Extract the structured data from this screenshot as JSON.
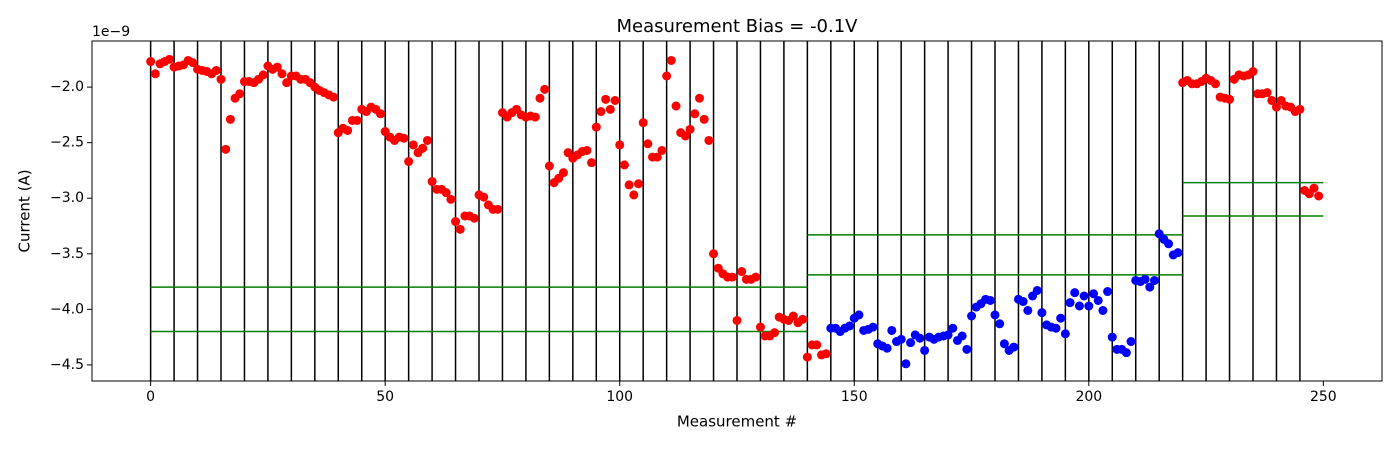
{
  "chart_data": {
    "type": "scatter",
    "title": "Measurement Bias = -0.1V",
    "x_label": "Measurement #",
    "y_label": "Current (A)",
    "y_offset_text": "1e−9",
    "xlim": [
      -12.5,
      262.5
    ],
    "ylim": [
      -4.645,
      -1.585
    ],
    "xticks": [
      0,
      50,
      100,
      150,
      200,
      250
    ],
    "yticks": [
      {
        "value": -2.0,
        "label": "−2.0"
      },
      {
        "value": -2.5,
        "label": "−2.5"
      },
      {
        "value": -3.0,
        "label": "−3.0"
      },
      {
        "value": -3.5,
        "label": "−3.5"
      },
      {
        "value": -4.0,
        "label": "−4.0"
      },
      {
        "value": -4.5,
        "label": "−4.5"
      }
    ],
    "vlines": [
      0,
      5,
      10,
      15,
      20,
      25,
      30,
      35,
      40,
      45,
      50,
      55,
      60,
      65,
      70,
      75,
      80,
      85,
      90,
      95,
      100,
      105,
      110,
      115,
      120,
      125,
      130,
      135,
      140,
      145,
      150,
      155,
      160,
      165,
      170,
      175,
      180,
      185,
      190,
      195,
      200,
      205,
      210,
      215,
      220,
      225,
      230,
      235,
      240,
      245
    ],
    "vline_color": "#000000",
    "hlines": [
      {
        "y": -3.8,
        "xmin": 0,
        "xmax": 140
      },
      {
        "y": -4.2,
        "xmin": 0,
        "xmax": 140
      },
      {
        "y": -3.33,
        "xmin": 140,
        "xmax": 220
      },
      {
        "y": -3.69,
        "xmin": 140,
        "xmax": 220
      },
      {
        "y": -2.86,
        "xmin": 220,
        "xmax": 250
      },
      {
        "y": -3.16,
        "xmin": 220,
        "xmax": 250
      }
    ],
    "hline_color": "#008000",
    "series": [
      {
        "color": "#ff0000",
        "x": [
          0,
          1,
          2,
          3,
          4,
          5,
          6,
          7,
          8,
          9,
          10,
          11,
          12,
          13,
          14,
          15,
          16,
          17,
          18,
          19,
          20,
          21,
          22,
          23,
          24,
          25,
          26,
          27,
          28,
          29,
          30,
          31,
          32,
          33,
          34,
          35,
          36,
          37,
          38,
          39,
          40,
          41,
          42,
          43,
          44,
          45,
          46,
          47,
          48,
          49,
          50,
          51,
          52,
          53,
          54,
          55,
          56,
          57,
          58,
          59,
          60,
          61,
          62,
          63,
          64,
          65,
          66,
          67,
          68,
          69,
          70,
          71,
          72,
          73,
          74,
          75,
          76,
          77,
          78,
          79,
          80,
          81,
          82,
          83,
          84,
          85,
          86,
          87,
          88,
          89,
          90,
          91,
          92,
          93,
          94,
          95,
          96,
          97,
          98,
          99,
          100,
          101,
          102,
          103,
          104,
          105,
          106,
          107,
          108,
          109,
          110,
          111,
          112,
          113,
          114,
          115,
          116,
          117,
          118,
          119,
          120,
          121,
          122,
          123,
          124,
          125,
          126,
          127,
          128,
          129,
          130,
          131,
          132,
          133,
          134,
          135,
          136,
          137,
          138,
          139,
          140,
          141,
          142,
          143,
          144,
          220,
          221,
          222,
          223,
          224,
          225,
          226,
          227,
          228,
          229,
          230,
          231,
          232,
          233,
          234,
          235,
          236,
          237,
          238,
          239,
          240,
          241,
          242,
          243,
          244,
          245,
          246,
          247,
          248,
          249
        ],
        "values": [
          -1.77,
          -1.88,
          -1.79,
          -1.77,
          -1.75,
          -1.82,
          -1.81,
          -1.8,
          -1.76,
          -1.78,
          -1.84,
          -1.85,
          -1.86,
          -1.88,
          -1.85,
          -1.93,
          -2.56,
          -2.29,
          -2.1,
          -2.06,
          -1.95,
          -1.95,
          -1.96,
          -1.93,
          -1.89,
          -1.81,
          -1.84,
          -1.82,
          -1.88,
          -1.96,
          -1.9,
          -1.9,
          -1.93,
          -1.93,
          -1.96,
          -2.0,
          -2.03,
          -2.05,
          -2.07,
          -2.09,
          -2.41,
          -2.37,
          -2.39,
          -2.3,
          -2.3,
          -2.2,
          -2.22,
          -2.18,
          -2.2,
          -2.24,
          -2.4,
          -2.45,
          -2.48,
          -2.45,
          -2.46,
          -2.67,
          -2.52,
          -2.59,
          -2.55,
          -2.48,
          -2.85,
          -2.92,
          -2.92,
          -2.95,
          -3.01,
          -3.21,
          -3.28,
          -3.16,
          -3.16,
          -3.18,
          -2.97,
          -2.99,
          -3.06,
          -3.1,
          -3.1,
          -2.23,
          -2.27,
          -2.23,
          -2.2,
          -2.25,
          -2.27,
          -2.26,
          -2.27,
          -2.1,
          -2.02,
          -2.71,
          -2.86,
          -2.82,
          -2.77,
          -2.59,
          -2.64,
          -2.61,
          -2.58,
          -2.57,
          -2.68,
          -2.36,
          -2.22,
          -2.11,
          -2.2,
          -2.12,
          -2.52,
          -2.7,
          -2.88,
          -2.97,
          -2.87,
          -2.32,
          -2.51,
          -2.63,
          -2.63,
          -2.57,
          -1.9,
          -1.76,
          -2.17,
          -2.41,
          -2.44,
          -2.38,
          -2.24,
          -2.1,
          -2.29,
          -2.48,
          -3.5,
          -3.63,
          -3.68,
          -3.71,
          -3.71,
          -4.1,
          -3.66,
          -3.73,
          -3.73,
          -3.71,
          -4.16,
          -4.24,
          -4.24,
          -4.21,
          -4.07,
          -4.09,
          -4.1,
          -4.06,
          -4.12,
          -4.09,
          -4.43,
          -4.32,
          -4.32,
          -4.41,
          -4.4,
          -1.96,
          -1.94,
          -1.97,
          -1.97,
          -1.95,
          -1.92,
          -1.94,
          -1.97,
          -2.09,
          -2.1,
          -2.11,
          -1.93,
          -1.89,
          -1.9,
          -1.89,
          -1.86,
          -2.06,
          -2.06,
          -2.05,
          -2.12,
          -2.18,
          -2.12,
          -2.17,
          -2.18,
          -2.22,
          -2.2,
          -2.93,
          -2.96,
          -2.91,
          -2.98
        ]
      },
      {
        "color": "#0000ff",
        "x": [
          145,
          146,
          147,
          148,
          149,
          150,
          151,
          152,
          153,
          154,
          155,
          156,
          157,
          158,
          159,
          160,
          161,
          162,
          163,
          164,
          165,
          166,
          167,
          168,
          169,
          170,
          171,
          172,
          173,
          174,
          175,
          176,
          177,
          178,
          179,
          180,
          181,
          182,
          183,
          184,
          185,
          186,
          187,
          188,
          189,
          190,
          191,
          192,
          193,
          194,
          195,
          196,
          197,
          198,
          199,
          200,
          201,
          202,
          203,
          204,
          205,
          206,
          207,
          208,
          209,
          210,
          211,
          212,
          213,
          214,
          215,
          216,
          217,
          218,
          219
        ],
        "values": [
          -4.17,
          -4.17,
          -4.2,
          -4.17,
          -4.15,
          -4.08,
          -4.05,
          -4.19,
          -4.18,
          -4.16,
          -4.31,
          -4.33,
          -4.35,
          -4.19,
          -4.29,
          -4.27,
          -4.49,
          -4.3,
          -4.23,
          -4.26,
          -4.37,
          -4.25,
          -4.27,
          -4.25,
          -4.24,
          -4.23,
          -4.17,
          -4.28,
          -4.24,
          -4.36,
          -4.06,
          -3.98,
          -3.95,
          -3.91,
          -3.92,
          -4.05,
          -4.13,
          -4.31,
          -4.37,
          -4.34,
          -3.91,
          -3.93,
          -4.01,
          -3.88,
          -3.83,
          -4.03,
          -4.14,
          -4.16,
          -4.17,
          -4.08,
          -4.22,
          -3.94,
          -3.85,
          -3.97,
          -3.88,
          -3.97,
          -3.86,
          -3.92,
          -4.01,
          -3.84,
          -4.25,
          -4.36,
          -4.36,
          -4.39,
          -4.29,
          -3.74,
          -3.75,
          -3.73,
          -3.8,
          -3.74,
          -3.32,
          -3.37,
          -3.41,
          -3.51,
          -3.49
        ]
      }
    ]
  }
}
